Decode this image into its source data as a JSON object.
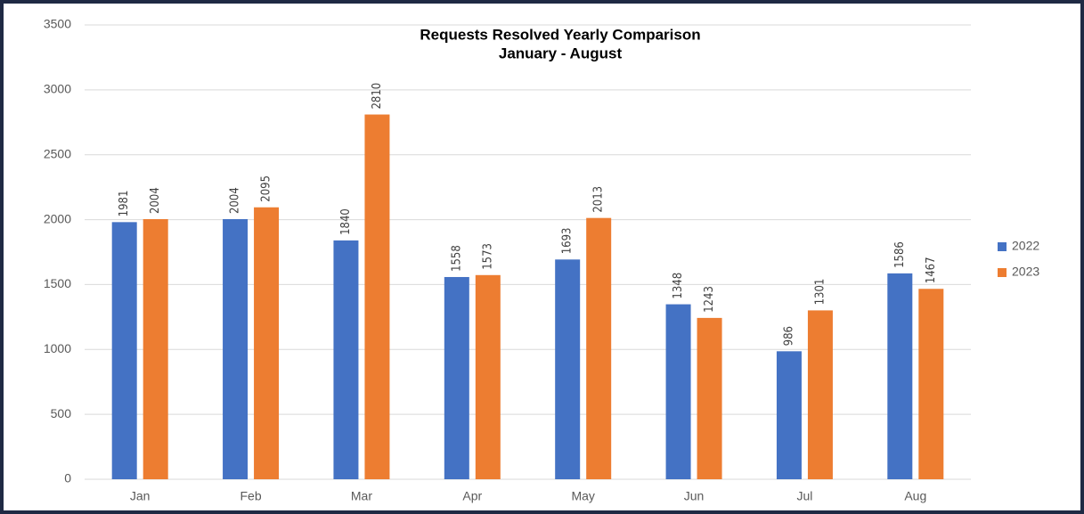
{
  "chart_data": {
    "type": "bar",
    "title": "Requests Resolved Yearly Comparison",
    "subtitle": "January  - August",
    "categories": [
      "Jan",
      "Feb",
      "Mar",
      "Apr",
      "May",
      "Jun",
      "Jul",
      "Aug"
    ],
    "series": [
      {
        "name": "2022",
        "color": "#4472c4",
        "values": [
          1981,
          2004,
          1840,
          1558,
          1693,
          1348,
          986,
          1586
        ]
      },
      {
        "name": "2023",
        "color": "#ed7d31",
        "values": [
          2004,
          2095,
          2810,
          1573,
          2013,
          1243,
          1301,
          1467
        ]
      }
    ],
    "ylim": [
      0,
      3500
    ],
    "yticks": [
      0,
      500,
      1000,
      1500,
      2000,
      2500,
      3000,
      3500
    ],
    "grid": true,
    "legend": "right",
    "data_labels": true
  }
}
